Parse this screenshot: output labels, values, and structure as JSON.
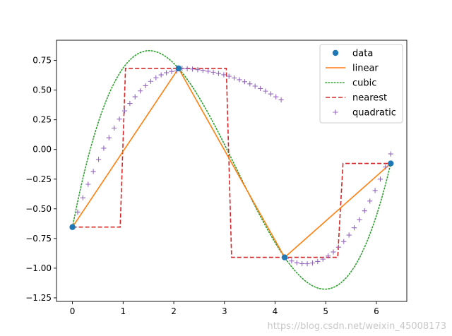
{
  "chart_data": {
    "type": "line",
    "xlim": [
      -0.315,
      6.6
    ],
    "ylim": [
      -1.28,
      0.92
    ],
    "xticks": [
      0,
      1,
      2,
      3,
      4,
      5,
      6
    ],
    "xtick_labels": [
      "0",
      "1",
      "2",
      "3",
      "4",
      "5",
      "6"
    ],
    "yticks": [
      0.75,
      0.5,
      0.25,
      0.0,
      -0.25,
      -0.5,
      -0.75,
      -1.0,
      -1.25
    ],
    "ytick_labels": [
      "0.75",
      "0.50",
      "0.25",
      "0.00",
      "−0.25",
      "−0.50",
      "−0.75",
      "−1.00",
      "−1.25"
    ],
    "grid": false,
    "legend_placement": "top-right",
    "data_points": {
      "name": "data",
      "x": [
        0.0,
        2.094,
        4.189,
        6.283
      ],
      "y": [
        -0.654,
        0.683,
        -0.909,
        -0.118
      ],
      "color": "#1f77b4"
    },
    "series": [
      {
        "name": "linear",
        "style": "solid",
        "color": "#ff7f0e"
      },
      {
        "name": "cubic",
        "style": "dotted",
        "color": "#2ca02c"
      },
      {
        "name": "nearest",
        "style": "dashed",
        "color": "#d62728"
      },
      {
        "name": "quadratic",
        "style": "plus-markers",
        "color": "#9467bd"
      }
    ]
  },
  "watermark": "https://blog.csdn.net/weixin_45008173"
}
